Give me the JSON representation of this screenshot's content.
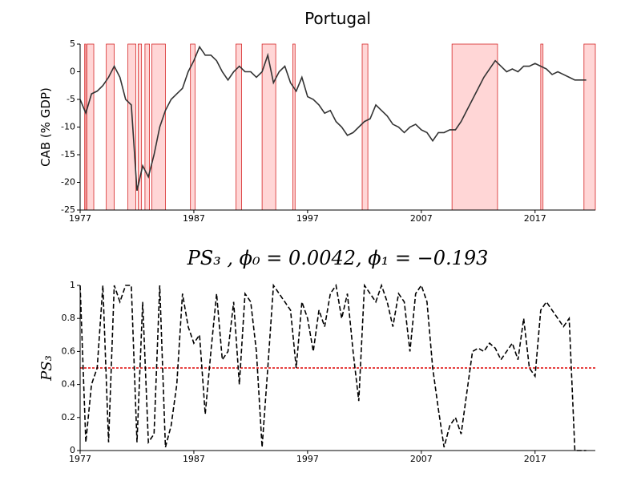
{
  "chart_data": [
    {
      "type": "line",
      "title": "Portugal",
      "ylabel": "CAB (% GDP)",
      "x": [
        1977,
        1977.5,
        1978,
        1978.5,
        1979,
        1979.5,
        1980,
        1980.5,
        1981,
        1981.5,
        1982,
        1982.5,
        1983,
        1983.5,
        1984,
        1984.5,
        1985,
        1985.5,
        1986,
        1986.5,
        1987,
        1987.5,
        1988,
        1988.5,
        1989,
        1989.5,
        1990,
        1990.5,
        1991,
        1991.5,
        1992,
        1992.5,
        1993,
        1993.5,
        1994,
        1994.5,
        1995,
        1995.5,
        1996,
        1996.5,
        1997,
        1997.5,
        1998,
        1998.5,
        1999,
        1999.5,
        2000,
        2000.5,
        2001,
        2001.5,
        2002,
        2002.5,
        2003,
        2003.5,
        2004,
        2004.5,
        2005,
        2005.5,
        2006,
        2006.5,
        2007,
        2007.5,
        2008,
        2008.5,
        2009,
        2009.5,
        2010,
        2010.5,
        2011,
        2011.5,
        2012,
        2012.5,
        2013,
        2013.5,
        2014,
        2014.5,
        2015,
        2015.5,
        2016,
        2016.5,
        2017,
        2017.5,
        2018,
        2018.5,
        2019,
        2019.5,
        2020,
        2020.5,
        2021,
        2021.5
      ],
      "series": [
        {
          "color": "#333333",
          "line_style": "solid",
          "values": [
            -5,
            -7.5,
            -4,
            -3.5,
            -2.5,
            -1,
            1,
            -1,
            -5,
            -6,
            -21.5,
            -17,
            -19,
            -15,
            -10,
            -7,
            -5,
            -4,
            -3,
            0,
            2,
            4.5,
            3,
            3,
            2,
            0,
            -1.5,
            0,
            1,
            0,
            0,
            -1,
            0,
            3,
            -2,
            0,
            1,
            -2,
            -3.5,
            -1,
            -4.5,
            -5,
            -6,
            -7.5,
            -7,
            -9,
            -10,
            -11.5,
            -11,
            -10,
            -9,
            -8.5,
            -6,
            -7,
            -8,
            -9.5,
            -10,
            -11,
            -10,
            -9.5,
            -10.5,
            -11,
            -12.5,
            -11,
            -11,
            -10.5,
            -10.5,
            -9,
            -7,
            -5,
            -3,
            -1,
            0.5,
            2,
            1,
            0,
            0.5,
            0,
            1,
            1,
            1.5,
            1,
            0.5,
            -0.5,
            0,
            -0.5,
            -1,
            -1.5,
            -1.5,
            -1.5
          ]
        }
      ],
      "shaded_regions": [
        [
          1977.4,
          1977.5
        ],
        [
          1977.6,
          1978.2
        ],
        [
          1979.3,
          1980.0
        ],
        [
          1981.2,
          1981.9
        ],
        [
          1982.1,
          1982.4
        ],
        [
          1982.7,
          1983.1
        ],
        [
          1983.3,
          1984.5
        ],
        [
          1986.7,
          1987.1
        ],
        [
          1990.7,
          1991.2
        ],
        [
          1993.0,
          1994.2
        ],
        [
          1995.7,
          1995.9
        ],
        [
          2001.8,
          2002.3
        ],
        [
          2009.7,
          2013.7
        ],
        [
          2017.5,
          2017.7
        ],
        [
          2021.3,
          2022.3
        ]
      ],
      "shade_color": "#ffd6d6",
      "shade_edge_color": "#d62728",
      "xlim": [
        1977,
        2022.3
      ],
      "xticks": [
        1977,
        1987,
        1997,
        2007,
        2017
      ],
      "ylim": [
        -25,
        5
      ],
      "yticks": [
        -25,
        -20,
        -15,
        -10,
        -5,
        0,
        5
      ]
    },
    {
      "type": "line",
      "title": "PS₃ , ϕ₀ = 0.0042, ϕ₁ = −0.193",
      "ylabel": "PS₃",
      "x": [
        1977,
        1977.5,
        1978,
        1978.5,
        1979,
        1979.5,
        1980,
        1980.5,
        1981,
        1981.5,
        1982,
        1982.5,
        1983,
        1983.5,
        1984,
        1984.5,
        1985,
        1985.5,
        1986,
        1986.5,
        1987,
        1987.5,
        1988,
        1988.5,
        1989,
        1989.5,
        1990,
        1990.5,
        1991,
        1991.5,
        1992,
        1992.5,
        1993,
        1993.5,
        1994,
        1994.5,
        1995,
        1995.5,
        1996,
        1996.5,
        1997,
        1997.5,
        1998,
        1998.5,
        1999,
        1999.5,
        2000,
        2000.5,
        2001,
        2001.5,
        2002,
        2002.5,
        2003,
        2003.5,
        2004,
        2004.5,
        2005,
        2005.5,
        2006,
        2006.5,
        2007,
        2007.5,
        2008,
        2008.5,
        2009,
        2009.5,
        2010,
        2010.5,
        2011,
        2011.5,
        2012,
        2012.5,
        2013,
        2013.5,
        2014,
        2014.5,
        2015,
        2015.5,
        2016,
        2016.5,
        2017,
        2017.5,
        2018,
        2018.5,
        2019,
        2019.5,
        2020,
        2020.5,
        2021,
        2021.5
      ],
      "series": [
        {
          "color": "#000000",
          "line_style": "dashed",
          "values": [
            1,
            0.05,
            0.4,
            0.5,
            1,
            0.05,
            1,
            0.9,
            1,
            1,
            0.05,
            0.9,
            0.05,
            0.1,
            1,
            0.02,
            0.15,
            0.4,
            0.95,
            0.75,
            0.65,
            0.7,
            0.22,
            0.6,
            0.95,
            0.55,
            0.6,
            0.9,
            0.4,
            0.95,
            0.9,
            0.6,
            0.02,
            0.5,
            1,
            0.95,
            0.9,
            0.85,
            0.5,
            0.9,
            0.8,
            0.6,
            0.85,
            0.75,
            0.95,
            1,
            0.8,
            0.95,
            0.6,
            0.3,
            1,
            0.95,
            0.9,
            1,
            0.9,
            0.75,
            0.95,
            0.9,
            0.6,
            0.95,
            1,
            0.9,
            0.5,
            0.25,
            0.02,
            0.15,
            0.2,
            0.1,
            0.35,
            0.6,
            0.62,
            0.6,
            0.65,
            0.62,
            0.55,
            0.6,
            0.65,
            0.55,
            0.8,
            0.5,
            0.45,
            0.85,
            0.9,
            0.85,
            0.8,
            0.75,
            0.8,
            0,
            0,
            0
          ]
        }
      ],
      "hline": 0.5,
      "hline_color": "#dd0000",
      "xlim": [
        1977,
        2022.3
      ],
      "xticks": [
        1977,
        1987,
        1997,
        2007,
        2017
      ],
      "ylim": [
        0,
        1
      ],
      "yticks": [
        0,
        0.2,
        0.4,
        0.6,
        0.8,
        1
      ]
    }
  ]
}
